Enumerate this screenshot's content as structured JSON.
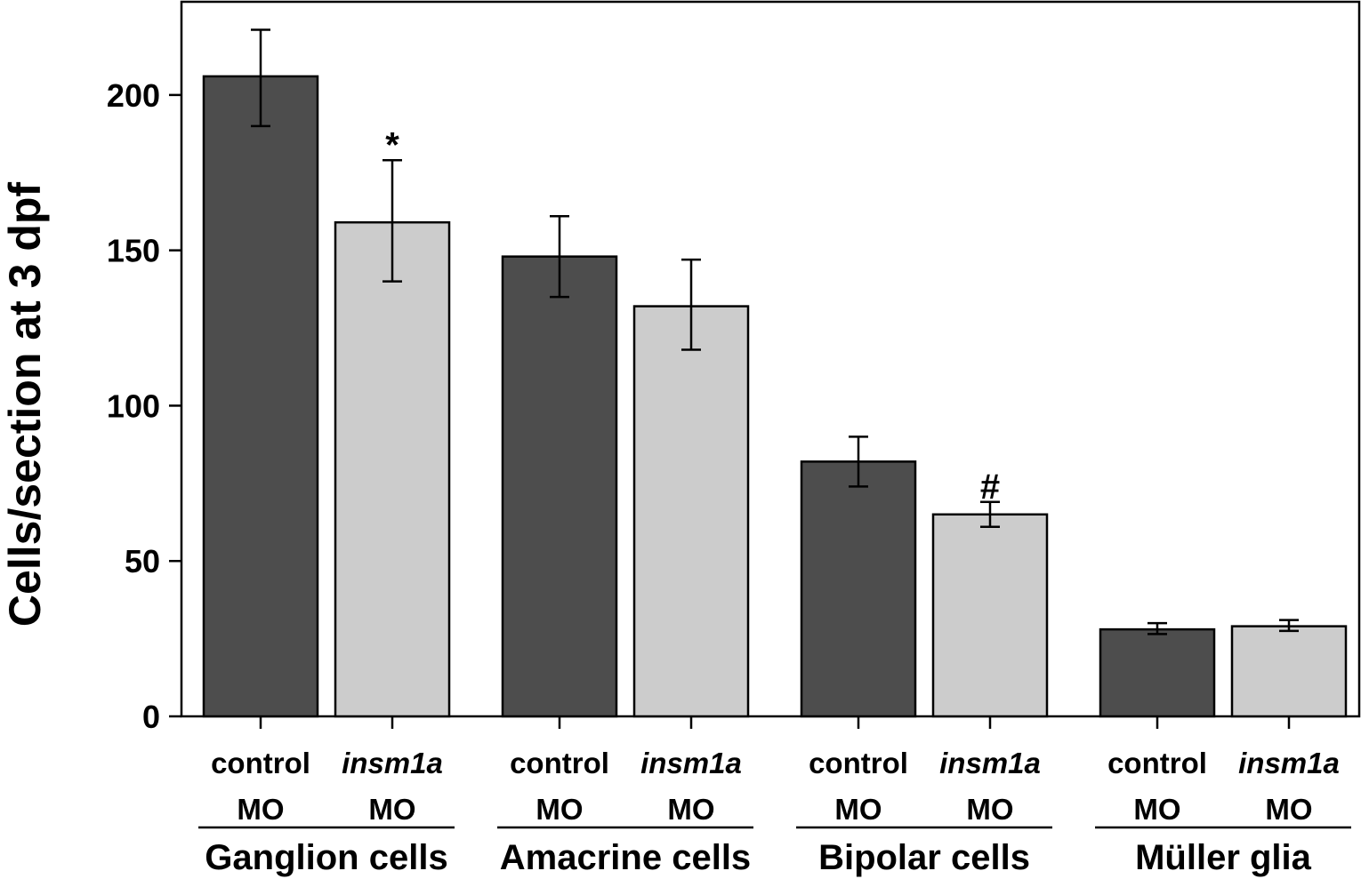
{
  "chart_data": {
    "type": "bar",
    "ylabel": "Cells/section at 3 dpf",
    "xlabel": "",
    "ylim": [
      0,
      230
    ],
    "yticks": [
      0,
      50,
      100,
      150,
      200
    ],
    "grid": false,
    "colors": {
      "control": "#4d4d4d",
      "insm1a": "#cccccc"
    },
    "groups": [
      {
        "name": "Ganglion cells",
        "bars": [
          {
            "line1": "control",
            "line2": "MO",
            "italic": false,
            "series": "control",
            "value": 206,
            "err_low": 190,
            "err_high": 221,
            "mark": ""
          },
          {
            "line1": "insm1a",
            "line2": "MO",
            "italic": true,
            "series": "insm1a",
            "value": 159,
            "err_low": 140,
            "err_high": 179,
            "mark": "*"
          }
        ]
      },
      {
        "name": "Amacrine cells",
        "bars": [
          {
            "line1": "control",
            "line2": "MO",
            "italic": false,
            "series": "control",
            "value": 148,
            "err_low": 135,
            "err_high": 161,
            "mark": ""
          },
          {
            "line1": "insm1a",
            "line2": "MO",
            "italic": true,
            "series": "insm1a",
            "value": 132,
            "err_low": 118,
            "err_high": 147,
            "mark": ""
          }
        ]
      },
      {
        "name": "Bipolar cells",
        "bars": [
          {
            "line1": "control",
            "line2": "MO",
            "italic": false,
            "series": "control",
            "value": 82,
            "err_low": 74,
            "err_high": 90,
            "mark": ""
          },
          {
            "line1": "insm1a",
            "line2": "MO",
            "italic": true,
            "series": "insm1a",
            "value": 65,
            "err_low": 61,
            "err_high": 69,
            "mark": "#"
          }
        ]
      },
      {
        "name": "Müller glia",
        "bars": [
          {
            "line1": "control",
            "line2": "MO",
            "italic": false,
            "series": "control",
            "value": 28,
            "err_low": 26.5,
            "err_high": 30,
            "mark": ""
          },
          {
            "line1": "insm1a",
            "line2": "MO",
            "italic": true,
            "series": "insm1a",
            "value": 29,
            "err_low": 27.5,
            "err_high": 31,
            "mark": ""
          }
        ]
      }
    ]
  }
}
